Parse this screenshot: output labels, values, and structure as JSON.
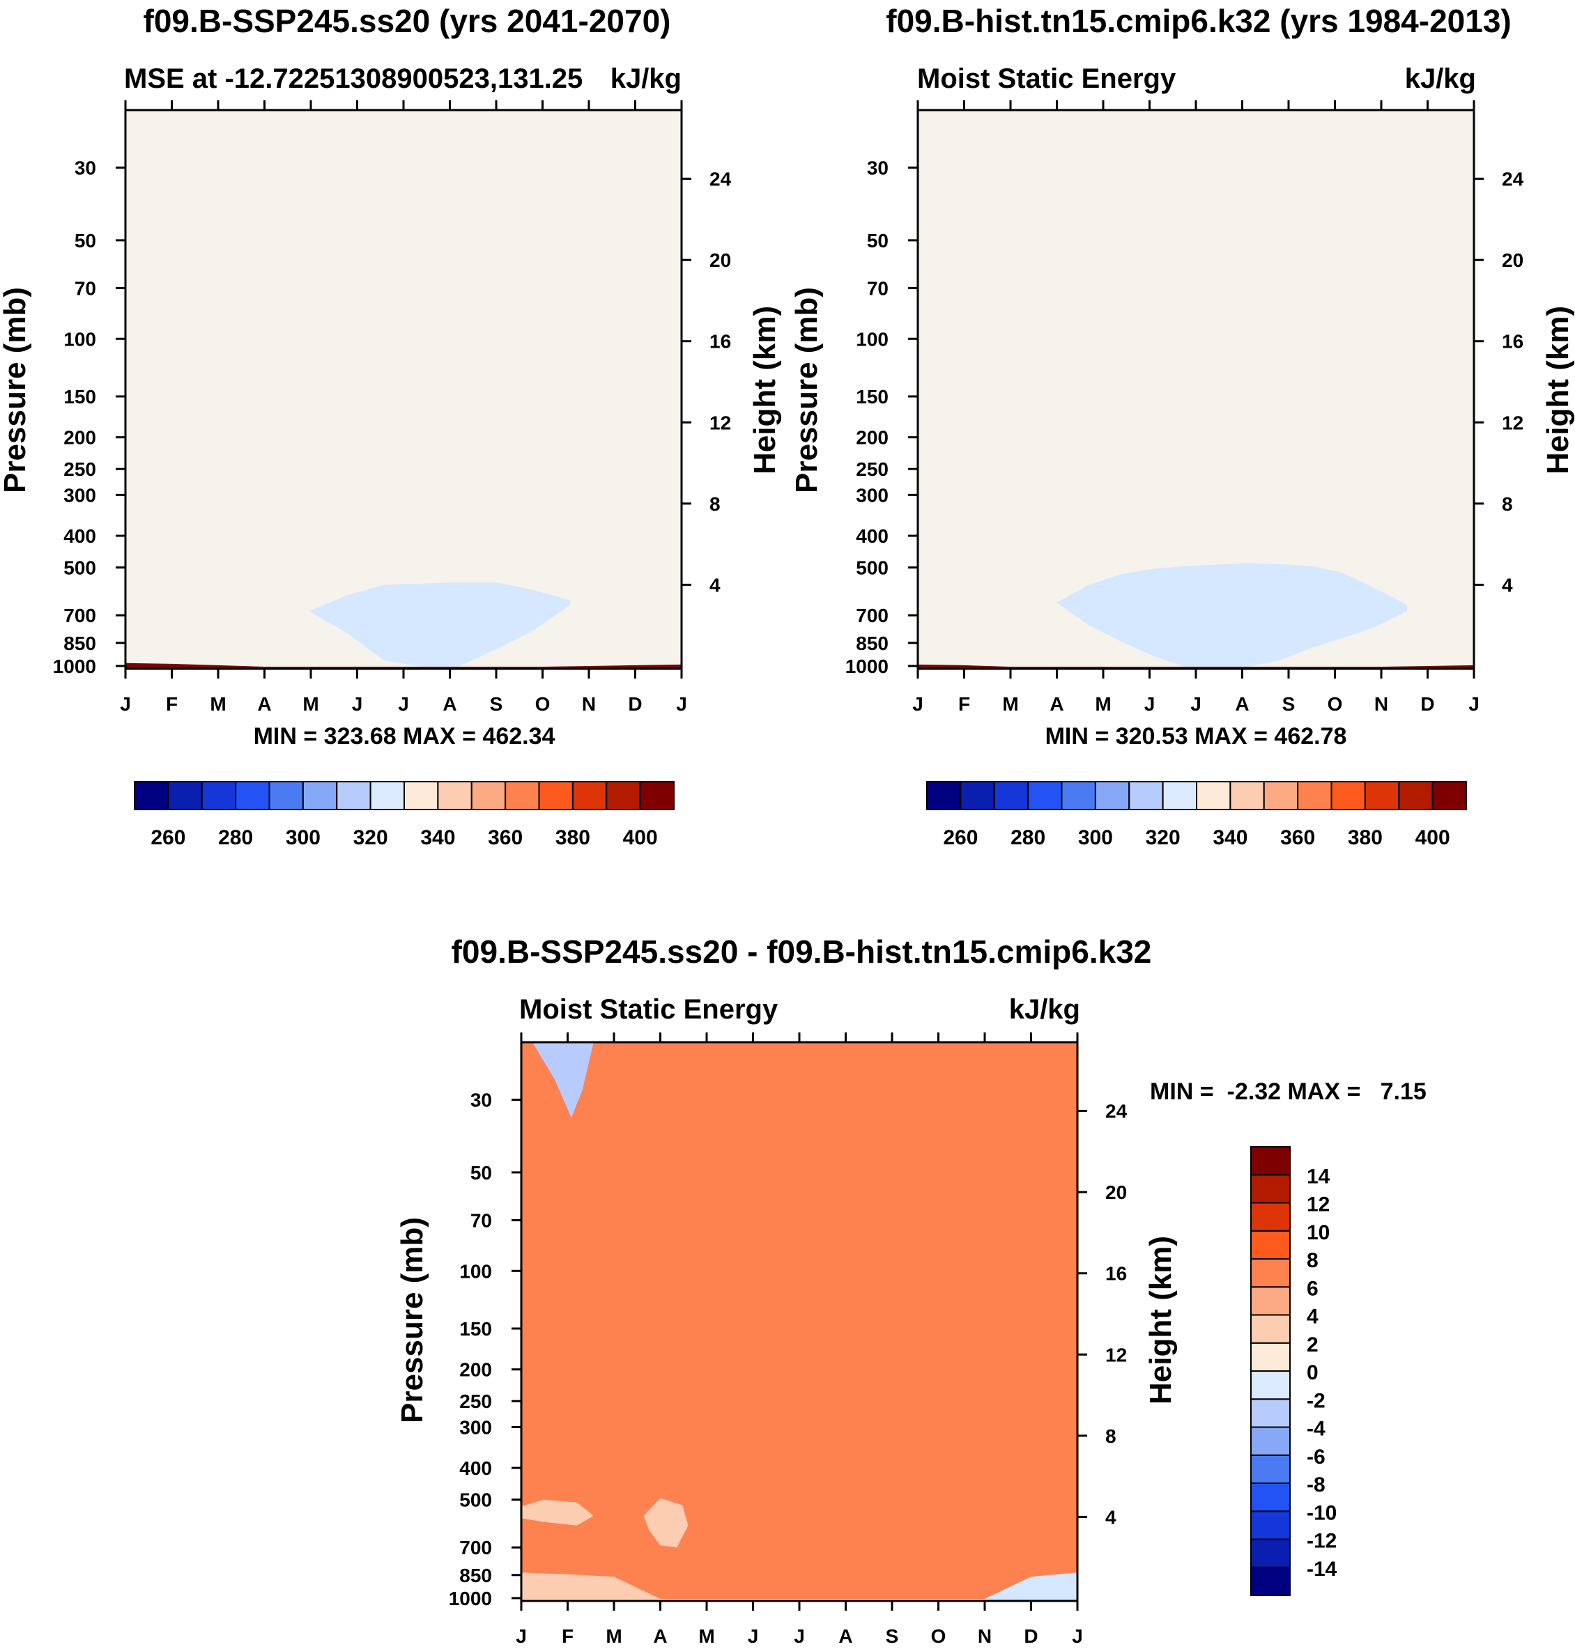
{
  "chart_data": [
    {
      "type": "contour",
      "title": "f09.B-SSP245.ss20 (yrs 2041-2070)",
      "subtitle_left": "MSE at -12.72251308900523,131.25",
      "subtitle_right": "kJ/kg",
      "ylabel": "Pressure (mb)",
      "ylabel_right": "Height (km)",
      "x_ticks": [
        "J",
        "F",
        "M",
        "A",
        "M",
        "J",
        "J",
        "A",
        "S",
        "O",
        "N",
        "D",
        "J"
      ],
      "y_ticks": [
        "30",
        "50",
        "70",
        "100",
        "150",
        "200",
        "250",
        "300",
        "400",
        "500",
        "700",
        "850",
        "1000"
      ],
      "y_ticks_right": [
        "24",
        "20",
        "16",
        "12",
        "8",
        "4"
      ],
      "ylim": [
        1000,
        20
      ],
      "stats": "MIN = 323.68 MAX = 462.34",
      "bottom_color": "#F4F0EA",
      "levels": [
        {
          "color": "#7F0000",
          "boundary": null
        },
        {
          "color": "#B31B00",
          "boundary": [
            53,
            54,
            55,
            56.5,
            57.5,
            58,
            58,
            57.5,
            56.5,
            55.5,
            54.5,
            53.5,
            52.5
          ]
        },
        {
          "color": "#DD3408",
          "boundary": [
            58,
            59,
            60,
            61.5,
            62.5,
            63.5,
            64,
            63.5,
            62.5,
            61.5,
            60.5,
            59,
            58
          ]
        },
        {
          "color": "#FF5A1E",
          "boundary": [
            67,
            67,
            68.5,
            70.5,
            72,
            73,
            74,
            74,
            73,
            71.5,
            69.5,
            68,
            67
          ]
        },
        {
          "color": "#FE8150",
          "boundary": [
            87,
            87,
            88,
            90,
            92,
            94,
            95,
            95,
            94,
            92,
            90,
            89,
            88
          ]
        },
        {
          "color": "#FCAA84",
          "boundary": [
            190,
            195,
            180,
            160,
            162,
            168,
            180,
            175,
            166,
            155,
            150,
            160,
            180
          ]
        },
        {
          "color": "#FDCDB2",
          "boundary": [
            545,
            552,
            550,
            460,
            400,
            395,
            395,
            390,
            385,
            370,
            375,
            470,
            530
          ]
        },
        {
          "color": "#FEEAD8",
          "boundary": [
            780,
            800,
            850,
            920,
            970,
            1005,
            1005,
            1005,
            965,
            910,
            870,
            850,
            820
          ]
        },
        {
          "color": "#F6A186",
          "boundary": [
            955,
            965,
            975,
            995,
            1005,
            1005,
            1005,
            1005,
            1005,
            990,
            970,
            960,
            950
          ]
        },
        {
          "color": "#F6F2EC",
          "boundary": [
            980,
            985,
            995,
            1005,
            1005,
            1005,
            1005,
            1005,
            1005,
            1005,
            1000,
            995,
            990
          ]
        }
      ],
      "inner_blob": {
        "color": "#D6E8FF",
        "top": [
          680,
          610,
          565,
          560,
          555,
          555,
          585,
          630
        ],
        "bottom": [
          680,
          790,
          960,
          1005,
          1005,
          890,
          780,
          650
        ]
      },
      "colorbar": {
        "orientation": "horizontal",
        "colors": [
          "#000080",
          "#0A1EB0",
          "#1537D9",
          "#2353F5",
          "#4A7BF2",
          "#86A8F7",
          "#B7CCFC",
          "#DCEBFD",
          "#FEEAD8",
          "#FDCDB2",
          "#FCAA84",
          "#FE8150",
          "#FF5A1E",
          "#DD3408",
          "#B31B00",
          "#7F0000"
        ],
        "labels": [
          "260",
          "280",
          "300",
          "320",
          "340",
          "360",
          "380",
          "400"
        ]
      }
    },
    {
      "type": "contour",
      "title": "f09.B-hist.tn15.cmip6.k32 (yrs 1984-2013)",
      "subtitle_left": "Moist Static Energy",
      "subtitle_right": "kJ/kg",
      "ylabel": "Pressure (mb)",
      "ylabel_right": "Height (km)",
      "x_ticks": [
        "J",
        "F",
        "M",
        "A",
        "M",
        "J",
        "J",
        "A",
        "S",
        "O",
        "N",
        "D",
        "J"
      ],
      "y_ticks": [
        "30",
        "50",
        "70",
        "100",
        "150",
        "200",
        "250",
        "300",
        "400",
        "500",
        "700",
        "850",
        "1000"
      ],
      "y_ticks_right": [
        "24",
        "20",
        "16",
        "12",
        "8",
        "4"
      ],
      "ylim": [
        1000,
        20
      ],
      "stats": "MIN = 320.53 MAX = 462.78",
      "bottom_color": "#F4F0EA",
      "levels": [
        {
          "color": "#7F0000",
          "boundary": null
        },
        {
          "color": "#B31B00",
          "boundary": [
            54,
            55,
            56,
            57.5,
            58.5,
            59,
            59,
            58.5,
            57.5,
            56.5,
            55.5,
            54.5,
            53.5
          ]
        },
        {
          "color": "#DD3408",
          "boundary": [
            60,
            61,
            62,
            63.5,
            64.5,
            65.5,
            66,
            65.5,
            64.5,
            63.5,
            62.5,
            61,
            60
          ]
        },
        {
          "color": "#FF5A1E",
          "boundary": [
            70,
            71,
            72.5,
            74.5,
            76,
            77,
            78,
            78,
            77,
            75.5,
            73.5,
            72,
            71
          ]
        },
        {
          "color": "#FE8150",
          "boundary": [
            85,
            86,
            87,
            89,
            91,
            93,
            94,
            94,
            93,
            91,
            89,
            87,
            86
          ]
        },
        {
          "color": "#FCAA84",
          "boundary": [
            111,
            112,
            114,
            117,
            120,
            122,
            124,
            124,
            123,
            120,
            117,
            114,
            112
          ]
        },
        {
          "color": "#FDCDB2",
          "boundary": [
            380,
            430,
            345,
            285,
            260,
            262,
            280,
            282,
            275,
            266,
            262,
            310,
            360
          ]
        },
        {
          "color": "#FEEAD8",
          "boundary": [
            820,
            825,
            835,
            870,
            935,
            1005,
            1005,
            1005,
            1005,
            930,
            880,
            860,
            850
          ]
        },
        {
          "color": "#F6A186",
          "boundary": [
            960,
            980,
            1005,
            1005,
            1005,
            1005,
            1005,
            1005,
            1005,
            1005,
            990,
            975,
            965
          ]
        },
        {
          "color": "#F6F2EC",
          "boundary": [
            990,
            995,
            1005,
            1005,
            1005,
            1005,
            1005,
            1005,
            1005,
            1005,
            1005,
            1000,
            995
          ]
        }
      ],
      "inner_blob": {
        "color": "#D6E8FF",
        "top": [
          640,
          565,
          525,
          505,
          495,
          490,
          485,
          488,
          495,
          520,
          580,
          650
        ],
        "bottom": [
          640,
          750,
          840,
          930,
          1005,
          1005,
          1005,
          960,
          880,
          820,
          760,
          680
        ]
      },
      "colorbar": {
        "orientation": "horizontal",
        "colors": [
          "#000080",
          "#0A1EB0",
          "#1537D9",
          "#2353F5",
          "#4A7BF2",
          "#86A8F7",
          "#B7CCFC",
          "#DCEBFD",
          "#FEEAD8",
          "#FDCDB2",
          "#FCAA84",
          "#FE8150",
          "#FF5A1E",
          "#DD3408",
          "#B31B00",
          "#7F0000"
        ],
        "labels": [
          "260",
          "280",
          "300",
          "320",
          "340",
          "360",
          "380",
          "400"
        ]
      }
    },
    {
      "type": "contour",
      "title": "f09.B-SSP245.ss20 - f09.B-hist.tn15.cmip6.k32",
      "subtitle_left": "Moist Static Energy",
      "subtitle_right": "kJ/kg",
      "ylabel": "Pressure (mb)",
      "ylabel_right": "Height (km)",
      "x_ticks": [
        "J",
        "F",
        "M",
        "A",
        "M",
        "J",
        "J",
        "A",
        "S",
        "O",
        "N",
        "D",
        "J"
      ],
      "y_ticks": [
        "30",
        "50",
        "70",
        "100",
        "150",
        "200",
        "250",
        "300",
        "400",
        "500",
        "700",
        "850",
        "1000"
      ],
      "y_ticks_right": [
        "24",
        "20",
        "16",
        "12",
        "8",
        "4"
      ],
      "ylim": [
        1000,
        20
      ],
      "stats": "MIN =  -2.32 MAX =   7.15",
      "bottom_color": "#F4F0EA",
      "levels": [
        {
          "color": "#D6E8FF",
          "boundary": null
        },
        {
          "color": "#FEEAD8",
          "boundary": [
            78,
            78,
            76,
            71,
            70,
            68,
            64,
            60,
            62,
            42,
            36,
            75,
            78
          ]
        },
        {
          "color": "#FDCDB2",
          "boundary": [
            88,
            88,
            88,
            88,
            88,
            88,
            88,
            88,
            89,
            88,
            88,
            88,
            88
          ]
        },
        {
          "color": "#FCAA84",
          "boundary": [
            99,
            100,
            102,
            106,
            107,
            108,
            107,
            107,
            110,
            113,
            112,
            106,
            100
          ]
        },
        {
          "color": "#FDCDB2",
          "boundary": [
            1005,
            1005,
            1005,
            1005,
            620,
            450,
            390,
            380,
            390,
            395,
            490,
            560,
            600
          ]
        },
        {
          "color": "#FE8150",
          "boundary": [
            835,
            845,
            860,
            1005,
            1005,
            1005,
            1005,
            1005,
            1005,
            1005,
            1005,
            860,
            835
          ]
        }
      ],
      "extra_blobs": [
        {
          "color": "#FDCDB2",
          "top_x": [
            0.0,
            0.04,
            0.1,
            0.13
          ],
          "top_p": [
            525,
            500,
            510,
            560
          ],
          "bot_x": [
            0.13,
            0.1,
            0.04,
            0.0
          ],
          "bot_p": [
            560,
            600,
            585,
            570
          ]
        },
        {
          "color": "#FDCDB2",
          "top_x": [
            0.22,
            0.25,
            0.29,
            0.3
          ],
          "top_p": [
            560,
            495,
            520,
            600
          ],
          "bot_x": [
            0.3,
            0.28,
            0.25,
            0.23
          ],
          "bot_p": [
            600,
            700,
            690,
            620
          ]
        },
        {
          "color": "#B7CCFC",
          "top_x": [
            0.02,
            0.06,
            0.09,
            0.13
          ],
          "top_p": [
            20,
            20,
            20,
            20
          ],
          "bot_x": [
            0.13,
            0.11,
            0.09,
            0.06,
            0.02
          ],
          "bot_p": [
            20,
            28,
            34,
            26,
            20
          ]
        }
      ],
      "colorbar": {
        "orientation": "vertical",
        "colors": [
          "#000080",
          "#0A1EB0",
          "#1537D9",
          "#2353F5",
          "#4A7BF2",
          "#86A8F7",
          "#B7CCFC",
          "#DCEBFD",
          "#FEEAD8",
          "#FDCDB2",
          "#FCAA84",
          "#FE8150",
          "#FF5A1E",
          "#DD3408",
          "#B31B00",
          "#7F0000"
        ],
        "labels": [
          "-14",
          "-12",
          "-10",
          "-8",
          "-6",
          "-4",
          "-2",
          "0",
          "2",
          "4",
          "6",
          "8",
          "10",
          "12",
          "14"
        ]
      }
    }
  ]
}
